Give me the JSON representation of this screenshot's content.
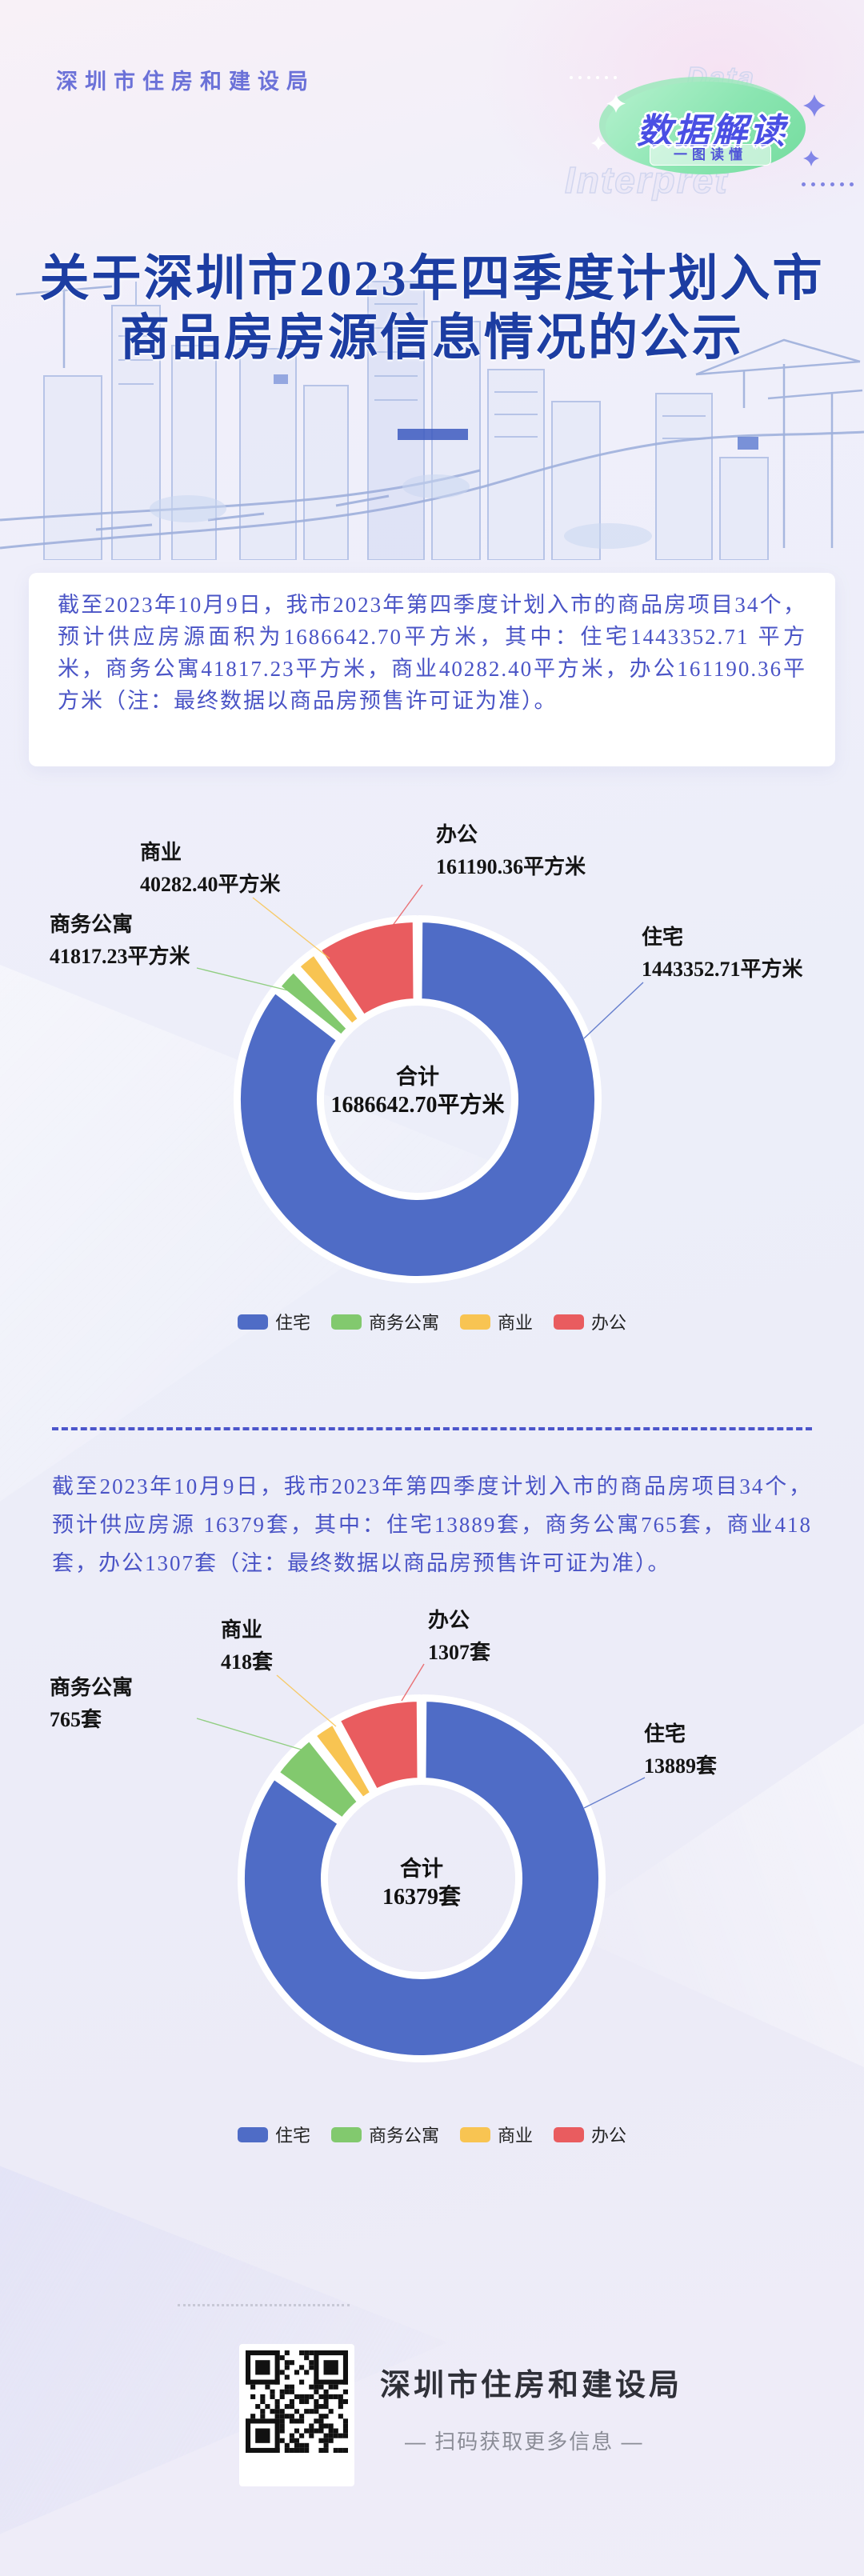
{
  "header": {
    "bureau": "深圳市住房和建设局",
    "badge_title": "数据解读",
    "badge_subtitle": "一图读懂",
    "watermark_top": "Data",
    "watermark_bottom": "Interpret"
  },
  "title": {
    "line1": "关于深圳市2023年四季度计划入市",
    "line2": "商品房房源信息情况的公示"
  },
  "paragraph1": "截至2023年10月9日，我市2023年第四季度计划入市的商品房项目34个，预计供应房源面积为1686642.70平方米，其中：住宅1443352.71 平方米，商务公寓41817.23平方米，商业40282.40平方米，办公161190.36平方米（注：最终数据以商品房预售许可证为准）。",
  "paragraph2": "截至2023年10月9日，我市2023年第四季度计划入市的商品房项目34个，预计供应房源 16379套，其中：住宅13889套，商务公寓765套，商业418套，办公1307套（注：最终数据以商品房预售许可证为准）。",
  "chart_data": [
    {
      "type": "pie",
      "subtype": "donut",
      "title": "2023年四季度计划入市商品房面积",
      "center_label": "合计",
      "center_value": "1686642.70平方米",
      "total": 1686642.7,
      "unit": "平方米",
      "legend_position": "bottom",
      "slices": [
        {
          "name": "住宅",
          "value": 1443352.71,
          "label": "1443352.71平方米",
          "color": "#4F6CC6"
        },
        {
          "name": "商务公寓",
          "value": 41817.23,
          "label": "41817.23平方米",
          "color": "#82C96E"
        },
        {
          "name": "商业",
          "value": 40282.4,
          "label": "40282.40平方米",
          "color": "#F8C452"
        },
        {
          "name": "办公",
          "value": 161190.36,
          "label": "161190.36平方米",
          "color": "#E95C5F"
        }
      ]
    },
    {
      "type": "pie",
      "subtype": "donut",
      "title": "2023年四季度计划入市商品房套数",
      "center_label": "合计",
      "center_value": "16379套",
      "total": 16379,
      "unit": "套",
      "legend_position": "bottom",
      "slices": [
        {
          "name": "住宅",
          "value": 13889,
          "label": "13889套",
          "color": "#4F6CC6"
        },
        {
          "name": "商务公寓",
          "value": 765,
          "label": "765套",
          "color": "#82C96E"
        },
        {
          "name": "商业",
          "value": 418,
          "label": "418套",
          "color": "#F8C452"
        },
        {
          "name": "办公",
          "value": 1307,
          "label": "1307套",
          "color": "#E95C5F"
        }
      ]
    }
  ],
  "footer": {
    "org": "深圳市住房和建设局",
    "scan_hint": "— 扫码获取更多信息 —"
  },
  "colors": {
    "housing": "#4F6CC6",
    "apartment": "#82C96E",
    "commerce": "#F8C452",
    "office": "#E95C5F",
    "title_blue": "#1C3DA2",
    "body_text": "#4A54C6",
    "badge_green": "#7ADFA4"
  }
}
